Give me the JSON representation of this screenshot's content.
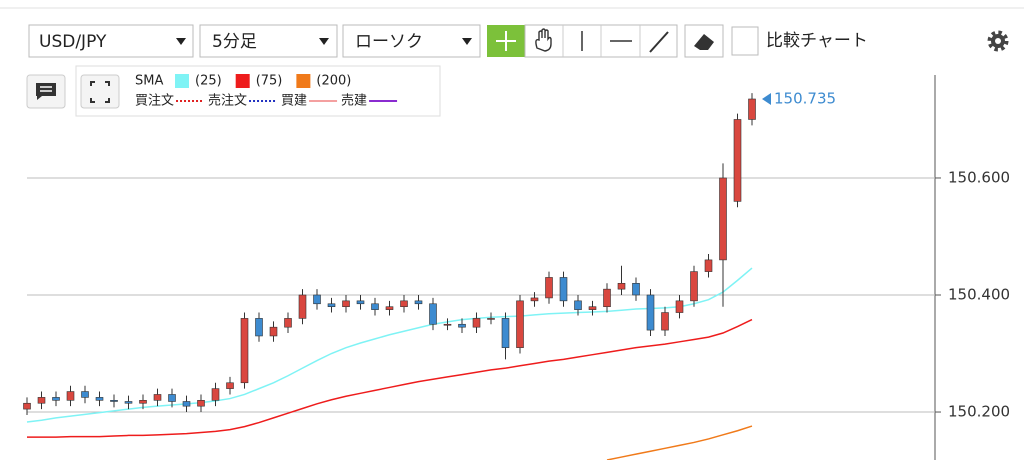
{
  "toolbar": {
    "symbol": "USD/JPY",
    "interval": "5分足",
    "chart_type": "ローソク",
    "compare": "比較チャート"
  },
  "chart_data": {
    "type": "candlestick",
    "last_price": 150.735,
    "ylim": [
      150.118,
      150.776
    ],
    "yticks": [
      {
        "value": 150.2,
        "label": "150.200"
      },
      {
        "value": 150.4,
        "label": "150.400"
      },
      {
        "value": 150.6,
        "label": "150.600"
      }
    ],
    "grid": true,
    "up_color": "#d9473f",
    "down_color": "#3d8bd0",
    "open": [
      150.205,
      150.215,
      150.225,
      150.22,
      150.235,
      150.225,
      150.22,
      150.218,
      150.215,
      150.22,
      150.23,
      150.218,
      150.21,
      150.22,
      150.24,
      150.25,
      150.36,
      150.33,
      150.345,
      150.36,
      150.4,
      150.385,
      150.38,
      150.39,
      150.385,
      150.375,
      150.38,
      150.39,
      150.385,
      150.35,
      150.35,
      150.345,
      150.36,
      150.36,
      150.31,
      150.39,
      150.395,
      150.43,
      150.39,
      150.375,
      150.38,
      150.41,
      150.42,
      150.4,
      150.34,
      150.37,
      150.39,
      150.44,
      150.46,
      150.56,
      150.7
    ],
    "high": [
      150.225,
      150.235,
      150.235,
      150.245,
      150.245,
      150.235,
      150.23,
      150.228,
      150.23,
      150.24,
      150.24,
      150.228,
      150.23,
      150.25,
      150.26,
      150.37,
      150.37,
      150.355,
      150.37,
      150.41,
      150.41,
      150.395,
      150.4,
      150.4,
      150.395,
      150.39,
      150.4,
      150.4,
      150.395,
      150.36,
      150.36,
      150.37,
      150.37,
      150.37,
      150.4,
      150.405,
      150.44,
      150.44,
      150.4,
      150.39,
      150.42,
      150.45,
      150.43,
      150.41,
      150.38,
      150.4,
      150.45,
      150.47,
      150.625,
      150.71,
      150.745
    ],
    "low": [
      150.195,
      150.205,
      150.21,
      150.21,
      150.215,
      150.21,
      150.208,
      150.205,
      150.205,
      150.21,
      150.208,
      150.2,
      150.2,
      150.21,
      150.23,
      150.24,
      150.32,
      150.32,
      150.335,
      150.35,
      150.375,
      150.37,
      150.37,
      150.375,
      150.365,
      150.365,
      150.37,
      150.375,
      150.34,
      150.34,
      150.335,
      150.335,
      150.35,
      150.29,
      150.3,
      150.38,
      150.385,
      150.38,
      150.365,
      150.365,
      150.37,
      150.4,
      150.39,
      150.33,
      150.33,
      150.36,
      150.38,
      150.43,
      150.38,
      150.55,
      150.69
    ],
    "close": [
      150.215,
      150.225,
      150.22,
      150.235,
      150.225,
      150.22,
      150.218,
      150.215,
      150.22,
      150.23,
      150.218,
      150.21,
      150.22,
      150.24,
      150.25,
      150.36,
      150.33,
      150.345,
      150.36,
      150.4,
      150.385,
      150.38,
      150.39,
      150.385,
      150.375,
      150.38,
      150.39,
      150.385,
      150.35,
      150.35,
      150.345,
      150.36,
      150.36,
      150.31,
      150.39,
      150.395,
      150.43,
      150.39,
      150.375,
      150.38,
      150.41,
      150.42,
      150.4,
      150.34,
      150.37,
      150.39,
      150.44,
      150.46,
      150.6,
      150.7,
      150.735
    ],
    "sma_label": "SMA",
    "sma": [
      {
        "name": "(25)",
        "color": "#7ff3f5",
        "values": [
          150.183,
          150.186,
          150.19,
          150.193,
          150.196,
          150.199,
          150.202,
          150.205,
          150.208,
          150.21,
          150.212,
          150.214,
          150.216,
          150.219,
          150.223,
          150.23,
          150.24,
          150.25,
          150.262,
          150.275,
          150.288,
          150.3,
          150.31,
          150.318,
          150.325,
          150.332,
          150.338,
          150.344,
          150.35,
          150.354,
          150.358,
          150.36,
          150.362,
          150.363,
          150.364,
          150.366,
          150.368,
          150.369,
          150.37,
          150.371,
          150.372,
          150.374,
          150.376,
          150.377,
          150.378,
          150.38,
          150.385,
          150.392,
          150.405,
          150.425,
          150.446
        ]
      },
      {
        "name": "(75)",
        "color": "#ee1c1c",
        "values": [
          150.157,
          150.157,
          150.157,
          150.158,
          150.158,
          150.158,
          150.159,
          150.16,
          150.16,
          150.161,
          150.162,
          150.163,
          150.165,
          150.167,
          150.17,
          150.175,
          150.182,
          150.19,
          150.198,
          150.206,
          150.214,
          150.221,
          150.227,
          150.232,
          150.237,
          150.242,
          150.247,
          150.252,
          150.256,
          150.26,
          150.264,
          150.268,
          150.272,
          150.275,
          150.279,
          150.283,
          150.287,
          150.29,
          150.294,
          150.298,
          150.302,
          150.306,
          150.31,
          150.313,
          150.316,
          150.32,
          150.324,
          150.328,
          150.335,
          150.346,
          150.358
        ]
      },
      {
        "name": "(200)",
        "color": "#f07a1a",
        "values": [
          null,
          null,
          null,
          null,
          null,
          null,
          null,
          null,
          null,
          null,
          null,
          null,
          null,
          null,
          null,
          null,
          null,
          null,
          null,
          null,
          null,
          null,
          null,
          null,
          null,
          null,
          null,
          null,
          null,
          null,
          null,
          null,
          null,
          null,
          null,
          null,
          null,
          null,
          null,
          null,
          150.118,
          150.123,
          150.128,
          150.133,
          150.138,
          150.143,
          150.148,
          150.154,
          150.161,
          150.168,
          150.176
        ]
      }
    ],
    "orders": [
      {
        "name": "買注文",
        "color": "#e02020",
        "style": "dotted"
      },
      {
        "name": "売注文",
        "color": "#2030c0",
        "style": "dotted"
      },
      {
        "name": "買建",
        "color": "#f4a0a0",
        "style": "solid"
      },
      {
        "name": "売建",
        "color": "#8a2bd0",
        "style": "solid"
      }
    ]
  }
}
